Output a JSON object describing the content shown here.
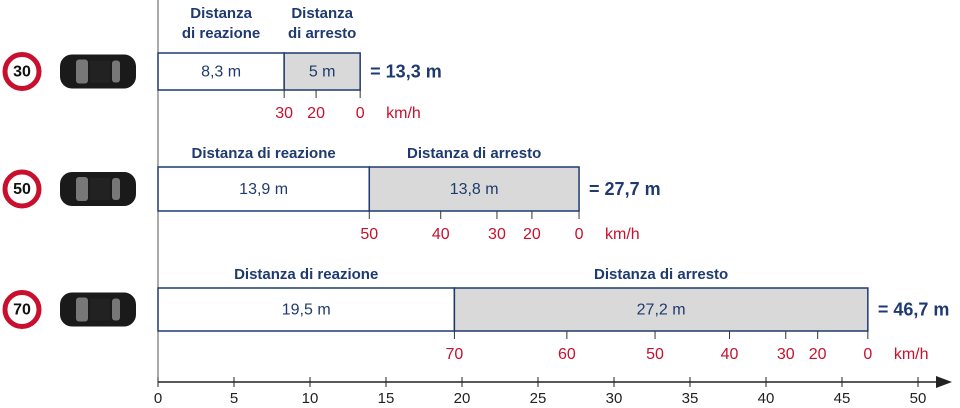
{
  "chart_data": {
    "type": "stopping_distance",
    "series": [
      {
        "name": "Distanza di reazione",
        "color": "#ffffff",
        "values": [
          8.3,
          13.9,
          19.5
        ],
        "value_labels": [
          "8,3 m",
          "13,9 m",
          "19,5 m"
        ]
      },
      {
        "name": "Distanza di arresto",
        "color": "#d9d9d9",
        "values": [
          5,
          13.8,
          27.2
        ],
        "value_labels": [
          "5 m",
          "13,8 m",
          "27,2 m"
        ]
      }
    ],
    "speeds": [
      30,
      50,
      70
    ],
    "totals": [
      13.3,
      27.7,
      46.7
    ],
    "total_labels": [
      "= 13,3 m",
      "= 27,7 m",
      "= 46,7 m"
    ],
    "speed_unit": "km/h",
    "speed_ticks": [
      [
        {
          "value": 8.3,
          "label": "30"
        },
        {
          "value": 10.4,
          "label": "20"
        },
        {
          "value": 13.3,
          "label": "0"
        }
      ],
      [
        {
          "value": 13.9,
          "label": "50"
        },
        {
          "value": 18.6,
          "label": "40"
        },
        {
          "value": 22.3,
          "label": "30"
        },
        {
          "value": 24.6,
          "label": "20"
        },
        {
          "value": 27.7,
          "label": "0"
        }
      ],
      [
        {
          "value": 19.5,
          "label": "70"
        },
        {
          "value": 26.9,
          "label": "60"
        },
        {
          "value": 32.7,
          "label": "50"
        },
        {
          "value": 37.6,
          "label": "40"
        },
        {
          "value": 41.3,
          "label": "30"
        },
        {
          "value": 43.4,
          "label": "20"
        },
        {
          "value": 46.7,
          "label": "0"
        }
      ]
    ],
    "xlim": [
      0,
      50
    ],
    "xticks": [
      0,
      5,
      10,
      15,
      20,
      25,
      30,
      35,
      40,
      45,
      50
    ]
  }
}
